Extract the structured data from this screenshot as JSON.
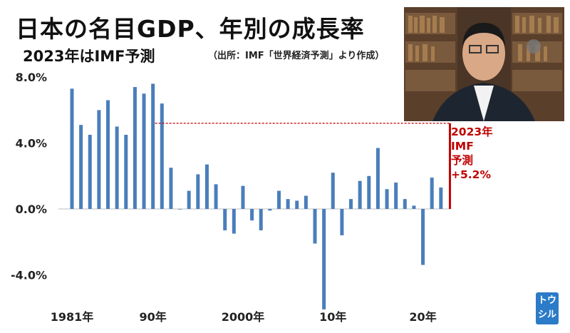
{
  "header": {
    "title": "日本の名目GDP、年別の成長率",
    "subtitle": "2023年はIMF予測",
    "source": "（出所：IMF「世界経済予測」より作成）"
  },
  "annotation": {
    "line1": "2023年",
    "line2": "IMF",
    "line3": "予測",
    "line4": "+5.2%"
  },
  "branding": {
    "logo_line1": "トウ",
    "logo_line2": "シル"
  },
  "colors": {
    "bar": "#4a7ebb",
    "forecast": "#c00000"
  },
  "chart_data": {
    "type": "bar",
    "title": "日本の名目GDP、年別の成長率",
    "x": [
      1981,
      1982,
      1983,
      1984,
      1985,
      1986,
      1987,
      1988,
      1989,
      1990,
      1991,
      1992,
      1993,
      1994,
      1995,
      1996,
      1997,
      1998,
      1999,
      2000,
      2001,
      2002,
      2003,
      2004,
      2005,
      2006,
      2007,
      2008,
      2009,
      2010,
      2011,
      2012,
      2013,
      2014,
      2015,
      2016,
      2017,
      2018,
      2019,
      2020,
      2021,
      2022,
      2023
    ],
    "values": [
      7.3,
      5.1,
      4.5,
      6.0,
      6.6,
      5.0,
      4.5,
      7.4,
      7.0,
      7.6,
      6.4,
      2.5,
      0.0,
      1.1,
      2.1,
      2.7,
      1.5,
      -1.3,
      -1.5,
      1.4,
      -0.7,
      -1.3,
      -0.1,
      1.1,
      0.6,
      0.5,
      0.8,
      -2.1,
      -6.1,
      2.2,
      -1.6,
      0.6,
      1.7,
      2.0,
      3.7,
      1.2,
      1.6,
      0.6,
      0.2,
      -3.4,
      1.9,
      1.3,
      5.2
    ],
    "forecast_value": 5.2,
    "y_ticks": [
      "8.0%",
      "4.0%",
      "0.0%",
      "-4.0%"
    ],
    "y_tick_values": [
      8,
      4,
      0,
      -4
    ],
    "x_tick_labels": [
      "1981年",
      "90年",
      "2000年",
      "10年",
      "20年"
    ],
    "x_tick_years": [
      1981,
      1990,
      2000,
      2010,
      2020
    ],
    "ylim": [
      -6.2,
      8.0
    ],
    "grid": false
  }
}
